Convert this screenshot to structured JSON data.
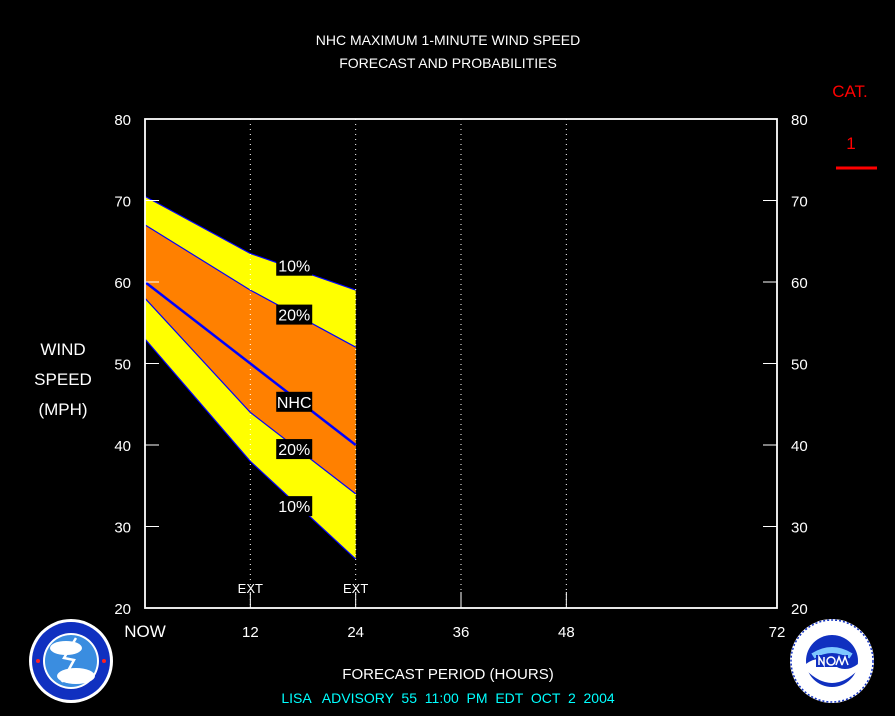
{
  "colors": {
    "background": "#000000",
    "frame": "#ffffff",
    "outer_band": "#ffff00",
    "inner_band": "#ff8000",
    "forecast_line": "#0000ff",
    "category": "#ff0000",
    "advisory": "#00ffff",
    "label_bg": "#000000"
  },
  "chart_data": {
    "type": "area",
    "title": "NHC MAXIMUM 1-MINUTE WIND SPEED",
    "subtitle": "FORECAST AND PROBABILITIES",
    "ylabel": [
      "WIND",
      "SPEED",
      "(MPH)"
    ],
    "xlabel": "FORECAST PERIOD (HOURS)",
    "footer": "LISA   ADVISORY  55  11:00  PM  EDT  OCT  2  2004",
    "xlim": [
      0,
      72
    ],
    "ylim": [
      20,
      80
    ],
    "x_ticks": [
      {
        "value": 0,
        "label": "NOW"
      },
      {
        "value": 12,
        "label": "12"
      },
      {
        "value": 24,
        "label": "24"
      },
      {
        "value": 36,
        "label": "36"
      },
      {
        "value": 48,
        "label": "48"
      },
      {
        "value": 72,
        "label": "72"
      }
    ],
    "y_ticks": [
      20,
      30,
      40,
      50,
      60,
      70,
      80
    ],
    "vertical_gridlines": [
      12,
      24,
      36,
      48
    ],
    "gridline_labels": [
      {
        "x": 12,
        "label": "EXT"
      },
      {
        "x": 24,
        "label": "EXT"
      }
    ],
    "category_label": "CAT.",
    "category_value": "1",
    "x": [
      0,
      12,
      24
    ],
    "series": [
      {
        "name": "10%",
        "role": "upper_outer",
        "values": [
          70.5,
          63.5,
          59
        ]
      },
      {
        "name": "20%",
        "role": "upper_inner",
        "values": [
          67,
          59,
          52
        ]
      },
      {
        "name": "NHC",
        "role": "forecast",
        "x": [
          0,
          6,
          12,
          18,
          24
        ],
        "values": [
          60,
          55,
          50,
          45,
          40
        ]
      },
      {
        "name": "20%",
        "role": "lower_inner",
        "values": [
          58,
          44,
          34
        ]
      },
      {
        "name": "10%",
        "role": "lower_outer",
        "values": [
          53,
          38,
          26
        ]
      }
    ],
    "band_labels": [
      {
        "text": "10%",
        "x": 17,
        "y": 62
      },
      {
        "text": "20%",
        "x": 17,
        "y": 56
      },
      {
        "text": "NHC",
        "x": 17,
        "y": 45.3
      },
      {
        "text": "20%",
        "x": 17,
        "y": 39.5
      },
      {
        "text": "10%",
        "x": 17,
        "y": 32.5
      }
    ]
  }
}
